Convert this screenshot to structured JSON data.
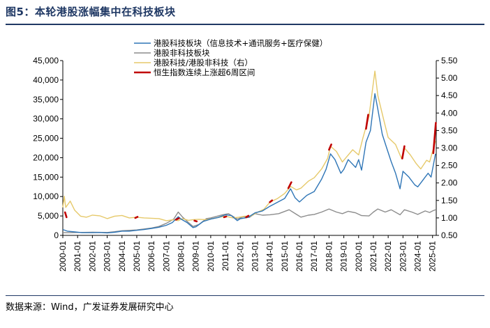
{
  "figure": {
    "title": "图5：本轮港股涨幅集中在科技板块",
    "source": "数据来源：Wind，广发证券发展研究中心"
  },
  "colors": {
    "blue": "#2e75b6",
    "gray": "#8c8c8c",
    "yellow": "#e6c96a",
    "red": "#c00000",
    "rule": "#1f3864"
  },
  "chart_data": {
    "type": "line",
    "title": "",
    "x": [
      "2000-01",
      "2001-01",
      "2002-01",
      "2003-01",
      "2004-01",
      "2005-01",
      "2006-01",
      "2007-01",
      "2008-01",
      "2009-01",
      "2010-01",
      "2011-01",
      "2012-01",
      "2013-01",
      "2014-01",
      "2015-01",
      "2016-01",
      "2017-01",
      "2018-01",
      "2019-01",
      "2020-01",
      "2021-01",
      "2022-01",
      "2023-01",
      "2024-01",
      "2025-01"
    ],
    "y_left": {
      "min": 0,
      "max": 45000,
      "ticks": [
        "0",
        "5,000",
        "10,000",
        "15,000",
        "20,000",
        "25,000",
        "30,000",
        "35,000",
        "40,000",
        "45,000"
      ]
    },
    "y_right": {
      "min": 0.5,
      "max": 5.5,
      "ticks": [
        "0.50",
        "1.00",
        "1.50",
        "2.00",
        "2.50",
        "3.00",
        "3.50",
        "4.00",
        "4.50",
        "5.00",
        "5.50"
      ]
    },
    "series": [
      {
        "name": "港股科技板块（信息技术+通讯服务+医疗保健）",
        "axis": "left",
        "points": [
          [
            2000.0,
            1500
          ],
          [
            2000.3,
            1100
          ],
          [
            2000.8,
            900
          ],
          [
            2001.3,
            700
          ],
          [
            2002.0,
            700
          ],
          [
            2002.5,
            750
          ],
          [
            2003.0,
            650
          ],
          [
            2003.5,
            800
          ],
          [
            2004.0,
            1100
          ],
          [
            2004.5,
            1100
          ],
          [
            2005.0,
            1300
          ],
          [
            2005.5,
            1500
          ],
          [
            2006.0,
            1800
          ],
          [
            2006.5,
            2100
          ],
          [
            2007.0,
            2600
          ],
          [
            2007.4,
            3300
          ],
          [
            2007.8,
            4800
          ],
          [
            2008.0,
            4200
          ],
          [
            2008.4,
            3300
          ],
          [
            2008.8,
            2000
          ],
          [
            2009.0,
            2200
          ],
          [
            2009.5,
            3600
          ],
          [
            2010.0,
            4200
          ],
          [
            2010.5,
            4600
          ],
          [
            2011.0,
            5300
          ],
          [
            2011.4,
            5100
          ],
          [
            2011.8,
            3800
          ],
          [
            2012.0,
            4300
          ],
          [
            2012.5,
            4600
          ],
          [
            2013.0,
            5800
          ],
          [
            2013.5,
            6300
          ],
          [
            2014.0,
            7500
          ],
          [
            2014.5,
            8500
          ],
          [
            2015.0,
            9500
          ],
          [
            2015.4,
            12000
          ],
          [
            2015.7,
            9700
          ],
          [
            2016.0,
            8600
          ],
          [
            2016.5,
            10300
          ],
          [
            2017.0,
            11300
          ],
          [
            2017.5,
            14500
          ],
          [
            2017.8,
            17000
          ],
          [
            2018.1,
            21000
          ],
          [
            2018.4,
            19500
          ],
          [
            2018.8,
            16000
          ],
          [
            2019.0,
            17000
          ],
          [
            2019.3,
            19500
          ],
          [
            2019.8,
            17500
          ],
          [
            2020.0,
            19500
          ],
          [
            2020.2,
            16800
          ],
          [
            2020.5,
            24000
          ],
          [
            2020.8,
            27000
          ],
          [
            2021.1,
            36500
          ],
          [
            2021.3,
            32500
          ],
          [
            2021.6,
            26000
          ],
          [
            2021.9,
            22500
          ],
          [
            2022.2,
            19000
          ],
          [
            2022.5,
            16000
          ],
          [
            2022.8,
            12000
          ],
          [
            2023.0,
            16500
          ],
          [
            2023.4,
            15000
          ],
          [
            2023.8,
            13000
          ],
          [
            2024.0,
            12500
          ],
          [
            2024.3,
            14000
          ],
          [
            2024.7,
            16000
          ],
          [
            2024.9,
            15000
          ],
          [
            2025.1,
            19000
          ],
          [
            2025.2,
            21000
          ]
        ]
      },
      {
        "name": "港股非科技板块",
        "axis": "left",
        "points": [
          [
            2000.0,
            700
          ],
          [
            2000.5,
            700
          ],
          [
            2001.0,
            750
          ],
          [
            2002.0,
            800
          ],
          [
            2003.0,
            750
          ],
          [
            2003.5,
            950
          ],
          [
            2004.0,
            1200
          ],
          [
            2005.0,
            1400
          ],
          [
            2006.0,
            1900
          ],
          [
            2006.5,
            2300
          ],
          [
            2007.0,
            3100
          ],
          [
            2007.5,
            4200
          ],
          [
            2007.8,
            6000
          ],
          [
            2008.1,
            4700
          ],
          [
            2008.5,
            3300
          ],
          [
            2008.8,
            2300
          ],
          [
            2009.2,
            2800
          ],
          [
            2009.7,
            4300
          ],
          [
            2010.0,
            4500
          ],
          [
            2010.8,
            5300
          ],
          [
            2011.2,
            5600
          ],
          [
            2011.8,
            4200
          ],
          [
            2012.2,
            4800
          ],
          [
            2012.6,
            4600
          ],
          [
            2013.0,
            5600
          ],
          [
            2013.5,
            5200
          ],
          [
            2014.0,
            5300
          ],
          [
            2014.6,
            5600
          ],
          [
            2015.3,
            6600
          ],
          [
            2015.8,
            5400
          ],
          [
            2016.1,
            4700
          ],
          [
            2016.6,
            5200
          ],
          [
            2017.0,
            5400
          ],
          [
            2017.5,
            6000
          ],
          [
            2018.0,
            6800
          ],
          [
            2018.5,
            6000
          ],
          [
            2018.9,
            5600
          ],
          [
            2019.3,
            6200
          ],
          [
            2019.8,
            5800
          ],
          [
            2020.2,
            5100
          ],
          [
            2020.7,
            5000
          ],
          [
            2021.0,
            6000
          ],
          [
            2021.3,
            6800
          ],
          [
            2021.8,
            6000
          ],
          [
            2022.2,
            6600
          ],
          [
            2022.8,
            5300
          ],
          [
            2023.1,
            6600
          ],
          [
            2023.6,
            6000
          ],
          [
            2024.0,
            5400
          ],
          [
            2024.5,
            6300
          ],
          [
            2024.8,
            5900
          ],
          [
            2025.0,
            6300
          ],
          [
            2025.2,
            6600
          ]
        ]
      },
      {
        "name": "港股科技/港股非科技（右）",
        "axis": "right",
        "points": [
          [
            2000.0,
            1.3
          ],
          [
            2000.1,
            1.62
          ],
          [
            2000.2,
            1.3
          ],
          [
            2000.5,
            1.48
          ],
          [
            2000.8,
            1.22
          ],
          [
            2001.2,
            1.05
          ],
          [
            2001.6,
            1.02
          ],
          [
            2002.0,
            1.08
          ],
          [
            2002.5,
            1.06
          ],
          [
            2003.0,
            0.98
          ],
          [
            2003.5,
            1.05
          ],
          [
            2004.0,
            1.07
          ],
          [
            2004.5,
            1.0
          ],
          [
            2005.0,
            1.02
          ],
          [
            2005.5,
            1.0
          ],
          [
            2006.0,
            0.99
          ],
          [
            2006.5,
            0.98
          ],
          [
            2007.0,
            0.92
          ],
          [
            2007.5,
            0.95
          ],
          [
            2007.8,
            0.92
          ],
          [
            2008.1,
            0.98
          ],
          [
            2008.5,
            0.93
          ],
          [
            2008.8,
            0.95
          ],
          [
            2009.2,
            0.96
          ],
          [
            2009.7,
            0.95
          ],
          [
            2010.0,
            0.97
          ],
          [
            2010.6,
            1.02
          ],
          [
            2011.0,
            1.05
          ],
          [
            2011.5,
            1.0
          ],
          [
            2011.9,
            1.02
          ],
          [
            2012.3,
            1.05
          ],
          [
            2012.7,
            1.05
          ],
          [
            2013.1,
            1.15
          ],
          [
            2013.6,
            1.25
          ],
          [
            2014.0,
            1.45
          ],
          [
            2014.5,
            1.55
          ],
          [
            2015.0,
            1.7
          ],
          [
            2015.4,
            1.9
          ],
          [
            2015.8,
            1.8
          ],
          [
            2016.1,
            1.85
          ],
          [
            2016.6,
            2.05
          ],
          [
            2017.0,
            2.15
          ],
          [
            2017.5,
            2.4
          ],
          [
            2017.9,
            2.7
          ],
          [
            2018.1,
            3.05
          ],
          [
            2018.5,
            2.9
          ],
          [
            2018.9,
            2.6
          ],
          [
            2019.2,
            2.75
          ],
          [
            2019.6,
            2.95
          ],
          [
            2020.0,
            2.8
          ],
          [
            2020.3,
            3.3
          ],
          [
            2020.7,
            3.9
          ],
          [
            2021.1,
            5.2
          ],
          [
            2021.3,
            4.5
          ],
          [
            2021.7,
            3.8
          ],
          [
            2022.0,
            3.3
          ],
          [
            2022.5,
            3.1
          ],
          [
            2022.9,
            2.7
          ],
          [
            2023.1,
            3.0
          ],
          [
            2023.5,
            2.8
          ],
          [
            2023.9,
            2.55
          ],
          [
            2024.2,
            2.4
          ],
          [
            2024.6,
            2.65
          ],
          [
            2024.8,
            2.6
          ],
          [
            2025.0,
            2.9
          ],
          [
            2025.2,
            3.2
          ]
        ]
      },
      {
        "name": "恒生指数连续上涨超6周区间",
        "axis": "right",
        "segments": [
          [
            [
              2000.15,
              1.16
            ],
            [
              2000.25,
              1.02
            ]
          ],
          [
            [
              2004.9,
              1.0
            ],
            [
              2005.05,
              1.03
            ]
          ],
          [
            [
              2007.65,
              0.95
            ],
            [
              2007.85,
              0.99
            ]
          ],
          [
            [
              2008.9,
              0.92
            ],
            [
              2009.05,
              0.9
            ]
          ],
          [
            [
              2010.9,
              1.02
            ],
            [
              2011.05,
              1.04
            ]
          ],
          [
            [
              2012.4,
              1.02
            ],
            [
              2012.55,
              1.06
            ]
          ],
          [
            [
              2014.0,
              1.45
            ],
            [
              2014.15,
              1.5
            ]
          ],
          [
            [
              2015.25,
              1.85
            ],
            [
              2015.45,
              2.02
            ]
          ],
          [
            [
              2018.0,
              2.95
            ],
            [
              2018.15,
              3.1
            ]
          ],
          [
            [
              2020.5,
              3.55
            ],
            [
              2020.65,
              3.95
            ]
          ],
          [
            [
              2022.95,
              2.7
            ],
            [
              2023.1,
              3.05
            ]
          ],
          [
            [
              2025.05,
              2.85
            ],
            [
              2025.22,
              3.72
            ]
          ]
        ]
      }
    ],
    "legend": "top-center"
  }
}
